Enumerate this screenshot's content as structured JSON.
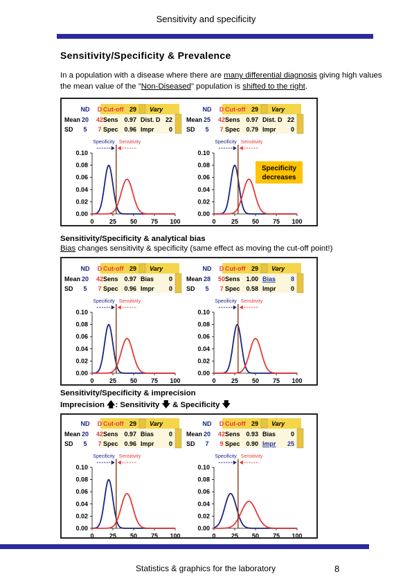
{
  "header": {
    "title": "Sensitivity and specificity"
  },
  "section1": {
    "heading": "Sensitivity/Specificity & Prevalence",
    "text_a": "In a population with a disease where there are ",
    "text_b": "many differential diagnosis",
    "text_c": " giving high values the mean value of the \"",
    "text_d": "Non-Diseased",
    "text_e": "\" population is ",
    "text_f": "shifted to the right",
    "text_g": "."
  },
  "section2": {
    "heading": "Sensitivity/Specificity & analytical bias",
    "text_a": "Bias",
    "text_b": " changes sensitivity & specificity (same effect as moving the cut-off point!)"
  },
  "section3": {
    "heading": "Sensitivity/Specificity & imprecision",
    "text_a": "Imprecision",
    "text_b": ": Sensitivity",
    "text_c": " & Specificity",
    "up_arrow": "🡅",
    "down_arrow": "🡇"
  },
  "labels": {
    "nd": "ND",
    "d": "D",
    "mean": "Mean",
    "sd": "SD",
    "cutoff": "Cut-off",
    "sens": "Sens",
    "spec": "Spec",
    "vary": "Vary",
    "impr": "Impr",
    "bias": "Bias",
    "distd": "Dist. D",
    "specificity_arrow": "Specificity",
    "sensitivity_arrow": "Sensitivity",
    "y_ticks": [
      "0.10",
      "0.08",
      "0.06",
      "0.04",
      "0.02",
      "0.00"
    ],
    "x_ticks": [
      "0",
      "25",
      "50",
      "75",
      "100"
    ]
  },
  "callout": {
    "line1": "Specificity",
    "line2": "decreases"
  },
  "colors": {
    "nd": "#1a237e",
    "d": "#e53935",
    "cutoff": "#8b3a0f",
    "table_bg": "#f5d54a",
    "callout": "#ffc300",
    "accent": "#2b2b9c"
  },
  "chart_data": [
    {
      "type": "line",
      "panel": "prevalence-left",
      "nd_mean": 20,
      "nd_sd": 5,
      "d_mean": 42,
      "d_sd": 7,
      "cutoff": 29,
      "sens": "0.97",
      "spec": "0.96",
      "extra_label": "Vary",
      "row2_label": "Dist. D",
      "row2_value": "22",
      "row3_label": "Impr",
      "row3_value": "0",
      "ylim": [
        0,
        0.1
      ],
      "xlim": [
        0,
        100
      ]
    },
    {
      "type": "line",
      "panel": "prevalence-right",
      "nd_mean": 25,
      "nd_sd": 5,
      "d_mean": 42,
      "d_sd": 7,
      "cutoff": 29,
      "sens": "0.97",
      "spec": "0.79",
      "extra_label": "Vary",
      "row2_label": "Dist. D",
      "row2_value": "22",
      "row3_label": "Impr",
      "row3_value": "0",
      "ylim": [
        0,
        0.1
      ],
      "xlim": [
        0,
        100
      ]
    },
    {
      "type": "line",
      "panel": "bias-left",
      "nd_mean": 20,
      "nd_sd": 5,
      "d_mean": 42,
      "d_sd": 7,
      "cutoff": 29,
      "sens": "0.97",
      "spec": "0.96",
      "extra_label": "Vary",
      "row2_label": "Bias",
      "row2_value": "0",
      "row3_label": "Impr",
      "row3_value": "0",
      "ylim": [
        0,
        0.1
      ],
      "xlim": [
        0,
        100
      ]
    },
    {
      "type": "line",
      "panel": "bias-right",
      "nd_mean": 28,
      "nd_sd": 5,
      "d_mean": 50,
      "d_sd": 7,
      "cutoff": 29,
      "sens": "1.00",
      "spec": "0.58",
      "extra_label": "Vary",
      "row2_label": "Bias",
      "row2_value": "8",
      "row3_label": "Impr",
      "row3_value": "0",
      "ylim": [
        0,
        0.1
      ],
      "xlim": [
        0,
        100
      ]
    },
    {
      "type": "line",
      "panel": "imprecision-left",
      "nd_mean": 20,
      "nd_sd": 5,
      "d_mean": 42,
      "d_sd": 7,
      "cutoff": 29,
      "sens": "0.97",
      "spec": "0.96",
      "extra_label": "Vary",
      "row2_label": "Bias",
      "row2_value": "0",
      "row3_label": "Impr",
      "row3_value": "0",
      "ylim": [
        0,
        0.1
      ],
      "xlim": [
        0,
        100
      ]
    },
    {
      "type": "line",
      "panel": "imprecision-right",
      "nd_mean": 20,
      "nd_sd": 7,
      "d_mean": 42,
      "d_sd": 9,
      "cutoff": 29,
      "sens": "0.93",
      "spec": "0.90",
      "extra_label": "Vary",
      "row2_label": "Bias",
      "row2_value": "0",
      "row3_label": "Impr",
      "row3_value": "25",
      "ylim": [
        0,
        0.1
      ],
      "xlim": [
        0,
        100
      ]
    }
  ],
  "footer": {
    "text": "Statistics & graphics for the laboratory",
    "page": "8"
  }
}
